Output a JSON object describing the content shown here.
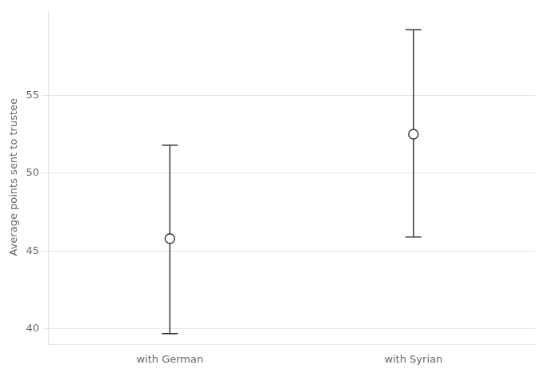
{
  "chart_data": {
    "type": "errorbar",
    "categories": [
      "with German",
      "with Syrian"
    ],
    "values": [
      45.8,
      52.5
    ],
    "ci_lower": [
      39.7,
      45.9
    ],
    "ci_upper": [
      51.8,
      59.2
    ],
    "ylabel": "Average points sent to trustee",
    "ylim": [
      39.0,
      60.5
    ],
    "yticks": [
      40,
      45,
      50,
      55
    ],
    "grid": true,
    "color": "#3a3a3a",
    "marker": "circle"
  }
}
